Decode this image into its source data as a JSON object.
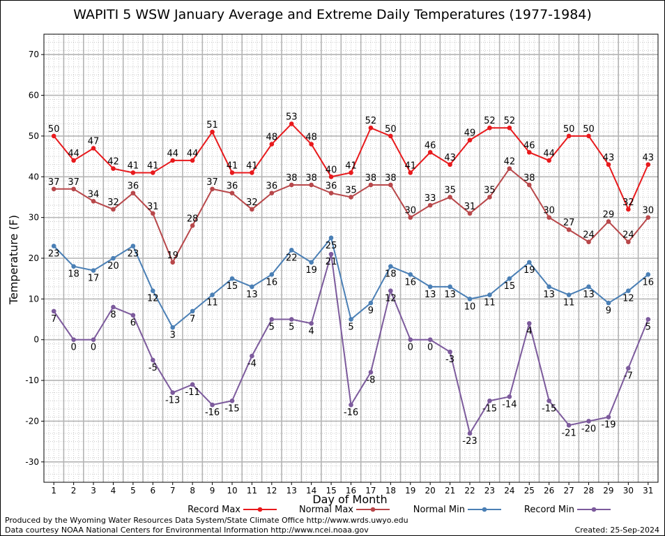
{
  "chart_data": {
    "type": "line",
    "title": "WAPITI 5 WSW January Average and Extreme Daily Temperatures (1977-1984)",
    "xlabel": "Day of Month",
    "ylabel": "Temperature (F)",
    "x": [
      1,
      2,
      3,
      4,
      5,
      6,
      7,
      8,
      9,
      10,
      11,
      12,
      13,
      14,
      15,
      16,
      17,
      18,
      19,
      20,
      21,
      22,
      23,
      24,
      25,
      26,
      27,
      28,
      29,
      30,
      31
    ],
    "xlim": [
      0.5,
      31.5
    ],
    "ylim": [
      -35,
      75
    ],
    "yticks": [
      -30,
      -20,
      -10,
      0,
      10,
      20,
      30,
      40,
      50,
      60,
      70
    ],
    "grid": true,
    "legend_position": "bottom",
    "series": [
      {
        "name": "Record Max",
        "color": "#e8191c",
        "label_position": "above",
        "values": [
          50,
          44,
          47,
          42,
          41,
          41,
          44,
          44,
          51,
          41,
          41,
          48,
          53,
          48,
          40,
          41,
          52,
          50,
          41,
          46,
          43,
          49,
          52,
          52,
          46,
          44,
          50,
          50,
          43,
          32,
          43
        ]
      },
      {
        "name": "Normal Max",
        "color": "#b8474a",
        "label_position": "above",
        "values": [
          37,
          37,
          34,
          32,
          36,
          31,
          19,
          28,
          37,
          36,
          32,
          36,
          38,
          38,
          36,
          35,
          38,
          38,
          30,
          33,
          35,
          31,
          35,
          42,
          38,
          30,
          27,
          24,
          29,
          24,
          30
        ]
      },
      {
        "name": "Normal Min",
        "color": "#4a7fb5",
        "label_position": "below",
        "values": [
          23,
          18,
          17,
          20,
          23,
          12,
          3,
          7,
          11,
          15,
          13,
          16,
          22,
          19,
          25,
          5,
          9,
          18,
          16,
          13,
          13,
          10,
          11,
          15,
          19,
          13,
          11,
          13,
          9,
          12,
          16
        ]
      },
      {
        "name": "Record Min",
        "color": "#7c5a9c",
        "label_position": "below",
        "values": [
          7,
          0,
          0,
          8,
          6,
          -5,
          -13,
          -11,
          -16,
          -15,
          -4,
          5,
          5,
          4,
          21,
          -16,
          -8,
          12,
          0,
          0,
          -3,
          -23,
          -15,
          -14,
          4,
          -15,
          -21,
          -20,
          -19,
          -7,
          5
        ]
      }
    ]
  },
  "footer": {
    "produced_by": "Produced by the Wyoming Water Resources Data System/State Climate Office http://www.wrds.uwyo.edu",
    "courtesy": "Data courtesy NOAA National Centers for Environmental Information http://www.ncei.noaa.gov",
    "created": "Created:  25-Sep-2024"
  }
}
